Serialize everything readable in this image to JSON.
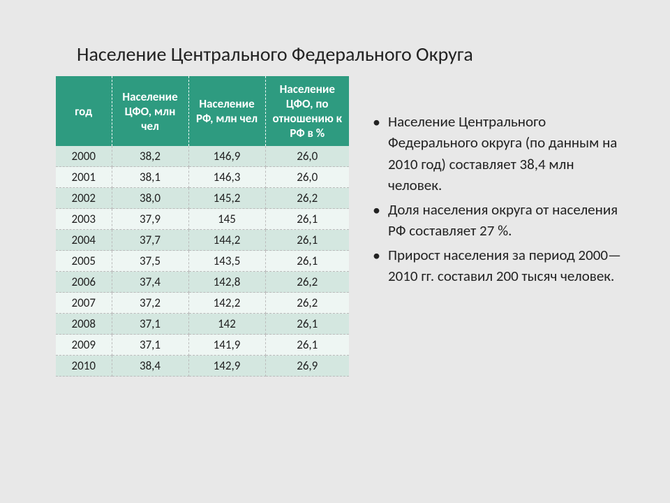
{
  "title": "Население Центрального Федерального Округа",
  "table": {
    "columns": [
      {
        "key": "year",
        "label": "год",
        "class": "col-year"
      },
      {
        "key": "cfo",
        "label": "Население ЦФО, млн чел",
        "class": "col-cfo"
      },
      {
        "key": "rf",
        "label": "Население РФ, млн чел",
        "class": "col-rf"
      },
      {
        "key": "pct",
        "label": "Население ЦФО, по отношению к РФ в %",
        "class": "col-pct"
      }
    ],
    "rows": [
      [
        "2000",
        "38,2",
        "146,9",
        "26,0"
      ],
      [
        "2001",
        "38,1",
        "146,3",
        "26,0"
      ],
      [
        "2002",
        "38,0",
        "145,2",
        "26,2"
      ],
      [
        "2003",
        "37,9",
        "145",
        "26,1"
      ],
      [
        "2004",
        "37,7",
        "144,2",
        "26,1"
      ],
      [
        "2005",
        "37,5",
        "143,5",
        "26,1"
      ],
      [
        "2006",
        "37,4",
        "142,8",
        "26,2"
      ],
      [
        "2007",
        "37,2",
        "142,2",
        "26,2"
      ],
      [
        "2008",
        "37,1",
        "142",
        "26,1"
      ],
      [
        "2009",
        "37,1",
        "141,9",
        "26,1"
      ],
      [
        "2010",
        "38,4",
        "142,9",
        "26,9"
      ]
    ],
    "header_bg": "#2e9b80",
    "header_fg": "#ffffff",
    "row_even_bg": "#d4e7e0",
    "row_odd_bg": "#eef6f3",
    "border_color": "#bbbbbb",
    "font_size": 17
  },
  "bullets": [
    "Население Центрального Федерального округа (по данным на 2010 год) составляет 38,4 млн человек.",
    "Доля населения округа от населения РФ составляет 27 %.",
    "Прирост населения за период 2000—2010 гг. составил 200 тысяч человек."
  ],
  "background_color": "#e8e8e8",
  "title_fontsize": 28,
  "bullet_fontsize": 21
}
